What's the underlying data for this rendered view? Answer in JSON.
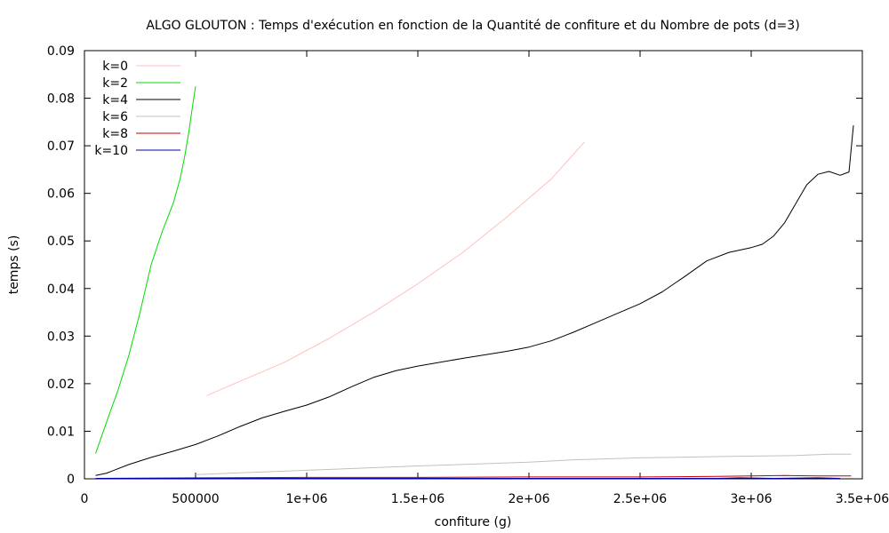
{
  "chart_data": {
    "type": "line",
    "title": "ALGO GLOUTON : Temps d'exécution en fonction de la Quantité de confiture et du Nombre de pots (d=3)",
    "xlabel": "confiture (g)",
    "ylabel": "temps (s)",
    "xlim": [
      0,
      3500000
    ],
    "ylim": [
      0,
      0.09
    ],
    "x_ticks": [
      {
        "value": 0,
        "label": "0"
      },
      {
        "value": 500000,
        "label": "500000"
      },
      {
        "value": 1000000,
        "label": "1e+06"
      },
      {
        "value": 1500000,
        "label": "1.5e+06"
      },
      {
        "value": 2000000,
        "label": "2e+06"
      },
      {
        "value": 2500000,
        "label": "2.5e+06"
      },
      {
        "value": 3000000,
        "label": "3e+06"
      },
      {
        "value": 3500000,
        "label": "3.5e+06"
      }
    ],
    "y_ticks": [
      {
        "value": 0,
        "label": "0"
      },
      {
        "value": 0.01,
        "label": "0.01"
      },
      {
        "value": 0.02,
        "label": "0.02"
      },
      {
        "value": 0.03,
        "label": "0.03"
      },
      {
        "value": 0.04,
        "label": "0.04"
      },
      {
        "value": 0.05,
        "label": "0.05"
      },
      {
        "value": 0.06,
        "label": "0.06"
      },
      {
        "value": 0.07,
        "label": "0.07"
      },
      {
        "value": 0.08,
        "label": "0.08"
      },
      {
        "value": 0.09,
        "label": "0.09"
      }
    ],
    "grid": false,
    "legend_position": "top-left",
    "series": [
      {
        "name": "k=0",
        "color": "#ffc0c0",
        "x": [
          550000,
          700000,
          900000,
          1100000,
          1300000,
          1500000,
          1700000,
          1900000,
          2100000,
          2250000
        ],
        "y": [
          0.0175,
          0.0205,
          0.0245,
          0.0295,
          0.035,
          0.041,
          0.0475,
          0.055,
          0.063,
          0.0708
        ]
      },
      {
        "name": "k=2",
        "color": "#00dd00",
        "x": [
          50000,
          100000,
          150000,
          200000,
          250000,
          300000,
          350000,
          400000,
          430000,
          450000,
          470000,
          485000,
          500000
        ],
        "y": [
          0.0053,
          0.012,
          0.0185,
          0.026,
          0.035,
          0.045,
          0.052,
          0.058,
          0.063,
          0.0675,
          0.073,
          0.078,
          0.0825
        ]
      },
      {
        "name": "k=4",
        "color": "#000000",
        "x": [
          50000,
          100000,
          200000,
          300000,
          400000,
          500000,
          600000,
          700000,
          800000,
          900000,
          1000000,
          1100000,
          1200000,
          1300000,
          1400000,
          1500000,
          1700000,
          1900000,
          2000000,
          2100000,
          2200000,
          2300000,
          2400000,
          2500000,
          2600000,
          2700000,
          2800000,
          2900000,
          3000000,
          3050000,
          3100000,
          3150000,
          3200000,
          3250000,
          3300000,
          3350000,
          3400000,
          3440000,
          3460000
        ],
        "y": [
          0.0007,
          0.0012,
          0.003,
          0.0045,
          0.0058,
          0.0072,
          0.009,
          0.011,
          0.0128,
          0.0142,
          0.0155,
          0.0172,
          0.0193,
          0.0213,
          0.0227,
          0.0237,
          0.0253,
          0.0268,
          0.0277,
          0.029,
          0.0308,
          0.0328,
          0.0348,
          0.0368,
          0.0393,
          0.0425,
          0.0458,
          0.0476,
          0.0486,
          0.0493,
          0.051,
          0.0538,
          0.0578,
          0.0618,
          0.064,
          0.0646,
          0.0638,
          0.0645,
          0.0743
        ]
      },
      {
        "name": "k=6",
        "color": "#c0c0c0",
        "x": [
          500000,
          1000000,
          1500000,
          2000000,
          2200000,
          2500000,
          2900000,
          3200000,
          3350000,
          3450000
        ],
        "y": [
          0.0009,
          0.0018,
          0.0027,
          0.0035,
          0.004,
          0.0044,
          0.0047,
          0.0049,
          0.0052,
          0.0052
        ]
      },
      {
        "name": "k=8",
        "color": "#cc0000",
        "x": [
          50000,
          500000,
          1000000,
          1500000,
          2000000,
          2500000,
          2850000,
          3000000,
          3150000,
          3300000,
          3450000
        ],
        "y": [
          0.0001,
          0.0002,
          0.0003,
          0.0003,
          0.0004,
          0.0004,
          0.0005,
          0.0006,
          0.0007,
          0.0006,
          0.0006
        ]
      },
      {
        "name": "k=10",
        "color": "#0000aa",
        "x": [
          50000,
          1000000,
          2000000,
          2850000,
          2950000,
          3100000,
          3300000,
          3400000
        ],
        "y": [
          0.0001,
          0.0001,
          0.0001,
          0.0001,
          0.0002,
          0.0001,
          0.0002,
          0.0001
        ]
      }
    ]
  }
}
